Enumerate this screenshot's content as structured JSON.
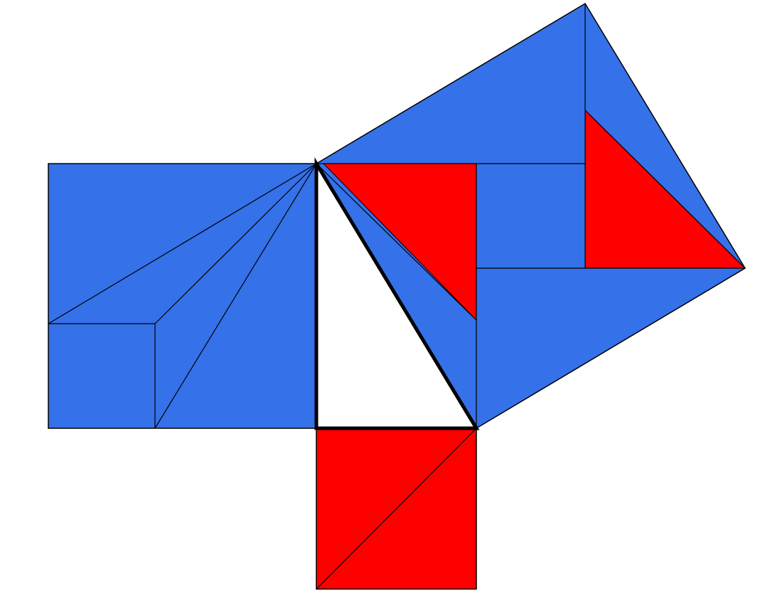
{
  "colors": {
    "background": "#ffffff",
    "blue": "#3571e8",
    "red": "#ff0000",
    "stroke": "#000000",
    "triangle_fill": "#ffffff"
  }
}
